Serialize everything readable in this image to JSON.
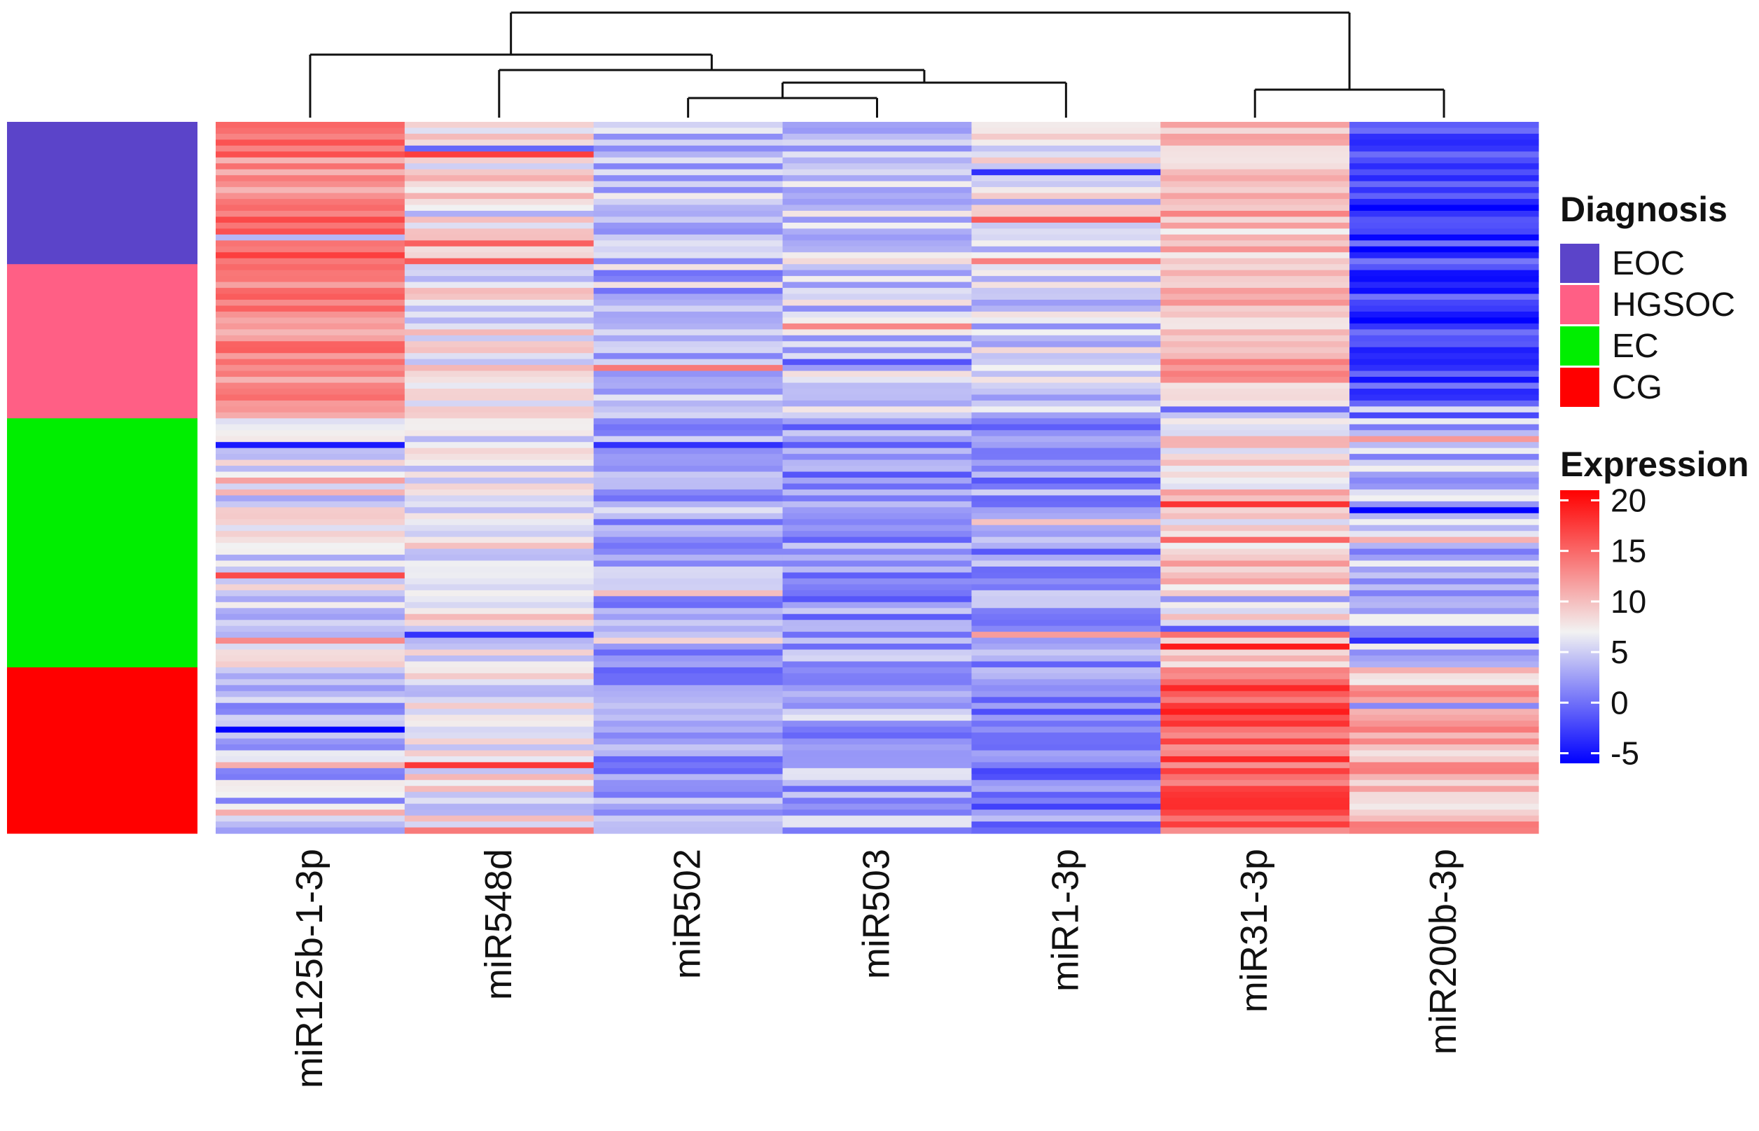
{
  "chart_data": {
    "type": "heatmap",
    "title": "",
    "columns": [
      "miR125b-1-3p",
      "miR548d",
      "miR502",
      "miR503",
      "miR1-3p",
      "miR31-3p",
      "miR200b-3p"
    ],
    "row_count": 120,
    "row_groups": [
      {
        "name": "EOC",
        "rows": 24,
        "color": "#5B44C9"
      },
      {
        "name": "HGSOC",
        "rows": 26,
        "color": "#FF5F85"
      },
      {
        "name": "EC",
        "rows": 42,
        "color": "#00EE00"
      },
      {
        "name": "CG",
        "rows": 28,
        "color": "#FF0000"
      }
    ],
    "group_profiles": {
      "EOC": [
        14,
        8,
        4,
        5,
        6,
        10,
        -3
      ],
      "HGSOC": [
        13,
        7,
        3,
        5,
        5,
        11,
        -2
      ],
      "EC": [
        6,
        7,
        3,
        2,
        2,
        9,
        4
      ],
      "CG": [
        4,
        7,
        2,
        3,
        1,
        16,
        11
      ]
    },
    "column_dendrogram": {
      "order": [
        "miR125b-1-3p",
        "miR548d",
        "miR502",
        "miR503",
        "miR1-3p",
        "miR31-3p",
        "miR200b-3p"
      ],
      "merges": [
        [
          2,
          3
        ],
        [
          -1,
          4
        ],
        [
          1,
          -2
        ],
        [
          0,
          -3
        ],
        [
          5,
          6
        ],
        [
          -4,
          -5
        ]
      ]
    },
    "legend": {
      "annotation_title": "Diagnosis",
      "annotation_items": [
        {
          "label": "EOC",
          "color": "#5B44C9"
        },
        {
          "label": "HGSOC",
          "color": "#FF5F85"
        },
        {
          "label": "EC",
          "color": "#00EE00"
        },
        {
          "label": "CG",
          "color": "#FF0000"
        }
      ],
      "colorbar_title": "Expression",
      "colorbar_ticks": [
        20,
        15,
        10,
        5,
        0,
        -5
      ],
      "colorbar_range": [
        -6,
        21
      ],
      "colorbar_stops": [
        {
          "value": -6,
          "color": "#0000FF"
        },
        {
          "value": 7,
          "color": "#F2F2F2"
        },
        {
          "value": 21,
          "color": "#FF0000"
        }
      ]
    }
  }
}
